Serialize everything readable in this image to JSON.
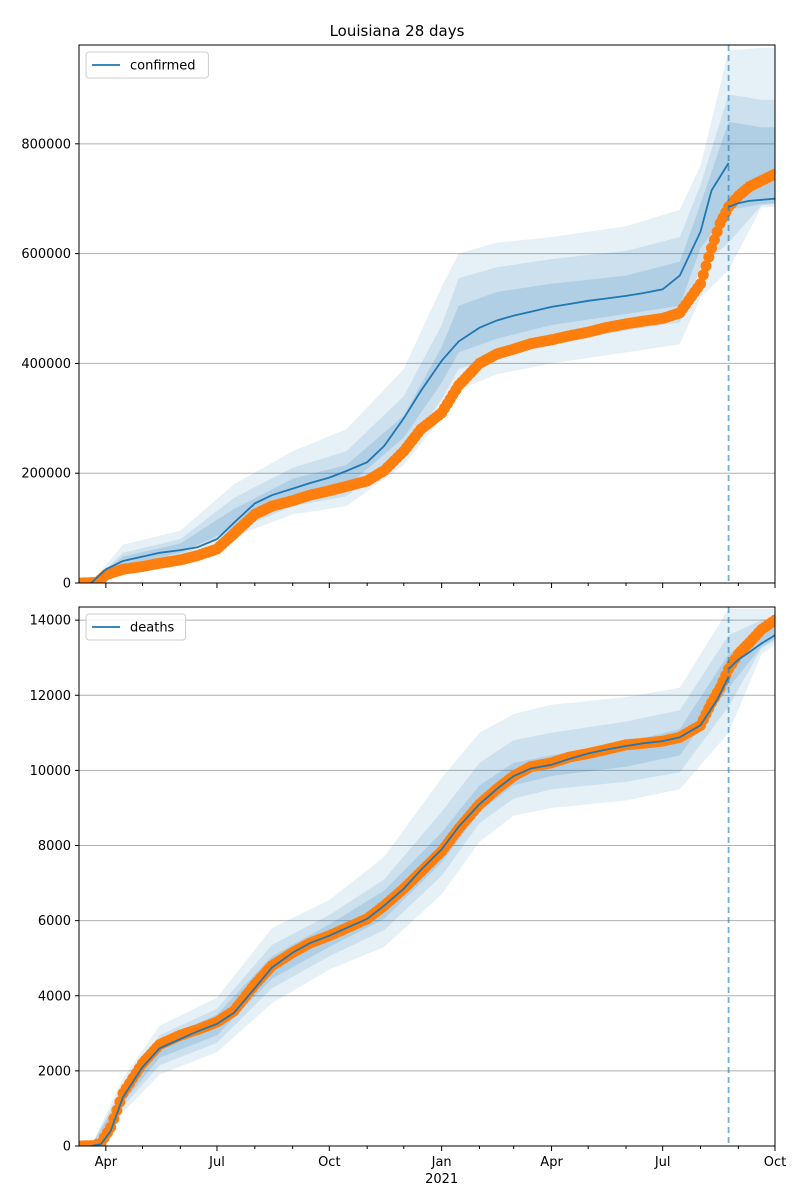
{
  "chart_data": [
    {
      "type": "line",
      "title": "Louisiana 28 days",
      "xlabel": "",
      "ylabel": "",
      "x_range": [
        "2020-03-10",
        "2021-10-01"
      ],
      "ylim": [
        0,
        980000
      ],
      "yticks": [
        0,
        200000,
        400000,
        600000,
        800000
      ],
      "ytick_labels": [
        "0",
        "200000",
        "400000",
        "600000",
        "800000"
      ],
      "grid": "y",
      "legend_position": "upper-left",
      "forecast_start": "2021-08-24",
      "colors": {
        "model": "#1f77b4",
        "observed": "#ff7f0e",
        "band": "#1f77b4"
      },
      "series": [
        {
          "name": "confirmed",
          "kind": "model-median",
          "x": [
            "2020-03-20",
            "2020-04-01",
            "2020-04-15",
            "2020-05-01",
            "2020-05-15",
            "2020-06-01",
            "2020-06-15",
            "2020-07-01",
            "2020-07-15",
            "2020-08-01",
            "2020-08-15",
            "2020-09-01",
            "2020-09-15",
            "2020-10-01",
            "2020-10-15",
            "2020-11-01",
            "2020-11-15",
            "2020-12-01",
            "2020-12-15",
            "2021-01-01",
            "2021-01-15",
            "2021-02-01",
            "2021-02-15",
            "2021-03-01",
            "2021-03-15",
            "2021-04-01",
            "2021-04-15",
            "2021-05-01",
            "2021-05-15",
            "2021-06-01",
            "2021-06-15",
            "2021-07-01",
            "2021-07-15",
            "2021-08-01",
            "2021-08-10",
            "2021-08-24"
          ],
          "y": [
            0,
            25000,
            40000,
            48000,
            55000,
            60000,
            65000,
            80000,
            110000,
            145000,
            160000,
            172000,
            182000,
            192000,
            204000,
            220000,
            250000,
            300000,
            350000,
            405000,
            440000,
            465000,
            478000,
            487000,
            494000,
            503000,
            508000,
            514000,
            518000,
            523000,
            528000,
            535000,
            560000,
            640000,
            715000,
            765000
          ]
        },
        {
          "name": "confirmed",
          "kind": "forecast-median",
          "x": [
            "2021-08-24",
            "2021-09-01",
            "2021-09-10",
            "2021-09-20",
            "2021-10-01"
          ],
          "y": [
            685000,
            692000,
            696000,
            698000,
            700000
          ]
        },
        {
          "name": "confirmed",
          "kind": "observed",
          "x": [
            "2020-03-10",
            "2020-03-25",
            "2020-04-01",
            "2020-04-15",
            "2020-05-01",
            "2020-05-15",
            "2020-06-01",
            "2020-06-15",
            "2020-07-01",
            "2020-07-15",
            "2020-08-01",
            "2020-08-15",
            "2020-09-01",
            "2020-09-15",
            "2020-10-01",
            "2020-10-15",
            "2020-11-01",
            "2020-11-15",
            "2020-12-01",
            "2020-12-15",
            "2021-01-01",
            "2021-01-15",
            "2021-02-01",
            "2021-02-15",
            "2021-03-01",
            "2021-03-15",
            "2021-04-01",
            "2021-04-15",
            "2021-05-01",
            "2021-05-15",
            "2021-06-01",
            "2021-06-15",
            "2021-07-01",
            "2021-07-15",
            "2021-08-01",
            "2021-08-10",
            "2021-08-17",
            "2021-08-24",
            "2021-09-01",
            "2021-09-10",
            "2021-09-20",
            "2021-10-01"
          ],
          "y": [
            0,
            1000,
            15000,
            25000,
            30000,
            36000,
            42000,
            50000,
            62000,
            90000,
            125000,
            140000,
            150000,
            160000,
            168000,
            176000,
            186000,
            205000,
            240000,
            280000,
            310000,
            360000,
            400000,
            417000,
            426000,
            436000,
            443000,
            450000,
            457000,
            465000,
            472000,
            477000,
            482000,
            492000,
            545000,
            610000,
            655000,
            685000,
            705000,
            722000,
            733000,
            745000
          ]
        }
      ],
      "bands": [
        {
          "x": [
            "2020-03-20",
            "2020-04-15",
            "2020-06-01",
            "2020-07-15",
            "2020-09-01",
            "2020-10-15",
            "2020-12-01",
            "2021-01-01",
            "2021-01-15",
            "2021-02-15",
            "2021-04-01",
            "2021-06-01",
            "2021-07-15",
            "2021-08-01",
            "2021-08-24",
            "2021-09-20",
            "2021-10-01"
          ],
          "lower": [
            0,
            18000,
            42000,
            85000,
            125000,
            140000,
            215000,
            300000,
            352000,
            380000,
            400000,
            420000,
            435000,
            520000,
            570000,
            685000,
            685000
          ],
          "upper": [
            0,
            70000,
            95000,
            180000,
            240000,
            280000,
            390000,
            540000,
            600000,
            620000,
            630000,
            650000,
            680000,
            760000,
            970000,
            975000,
            975000
          ]
        },
        {
          "x": [
            "2020-03-20",
            "2020-04-15",
            "2020-06-01",
            "2020-07-15",
            "2020-09-01",
            "2020-10-15",
            "2020-12-01",
            "2021-01-01",
            "2021-01-15",
            "2021-02-15",
            "2021-04-01",
            "2021-06-01",
            "2021-07-15",
            "2021-08-01",
            "2021-08-24",
            "2021-09-20",
            "2021-10-01"
          ],
          "lower": [
            0,
            25000,
            50000,
            95000,
            140000,
            158000,
            240000,
            335000,
            390000,
            410000,
            435000,
            460000,
            475000,
            575000,
            620000,
            688000,
            690000
          ],
          "upper": [
            0,
            55000,
            80000,
            155000,
            210000,
            240000,
            340000,
            470000,
            555000,
            575000,
            590000,
            605000,
            630000,
            725000,
            890000,
            880000,
            880000
          ]
        },
        {
          "x": [
            "2020-03-20",
            "2020-04-15",
            "2020-06-01",
            "2020-07-15",
            "2020-09-01",
            "2020-10-15",
            "2020-12-01",
            "2021-01-01",
            "2021-01-15",
            "2021-02-15",
            "2021-04-01",
            "2021-06-01",
            "2021-07-15",
            "2021-08-01",
            "2021-08-24",
            "2021-09-20",
            "2021-10-01"
          ],
          "lower": [
            0,
            32000,
            55000,
            100000,
            155000,
            175000,
            265000,
            365000,
            420000,
            445000,
            470000,
            490000,
            505000,
            610000,
            680000,
            690000,
            692000
          ],
          "upper": [
            0,
            48000,
            72000,
            135000,
            190000,
            215000,
            305000,
            430000,
            505000,
            530000,
            545000,
            560000,
            585000,
            690000,
            840000,
            830000,
            830000
          ]
        }
      ]
    },
    {
      "type": "line",
      "title": "",
      "xlabel": "",
      "ylabel": "",
      "x_range": [
        "2020-03-10",
        "2021-10-01"
      ],
      "ylim": [
        0,
        14350
      ],
      "yticks": [
        0,
        2000,
        4000,
        6000,
        8000,
        10000,
        12000,
        14000
      ],
      "ytick_labels": [
        "0",
        "2000",
        "4000",
        "6000",
        "8000",
        "10000",
        "12000",
        "14000"
      ],
      "xticks": [
        "2020-04-01",
        "2020-07-01",
        "2020-10-01",
        "2021-01-01",
        "2021-04-01",
        "2021-07-01",
        "2021-10-01"
      ],
      "xtick_labels": [
        "Apr",
        "Jul",
        "Oct",
        "Jan",
        "Apr",
        "Jul",
        "Oct"
      ],
      "year_label": {
        "at": "2021-01-01",
        "text": "2021"
      },
      "grid": "y",
      "legend_position": "upper-left",
      "forecast_start": "2021-08-24",
      "colors": {
        "model": "#1f77b4",
        "observed": "#ff7f0e",
        "band": "#1f77b4"
      },
      "series": [
        {
          "name": "deaths",
          "kind": "model-median",
          "x": [
            "2020-03-20",
            "2020-03-28",
            "2020-04-05",
            "2020-04-15",
            "2020-05-01",
            "2020-05-15",
            "2020-06-01",
            "2020-06-15",
            "2020-07-01",
            "2020-07-15",
            "2020-08-01",
            "2020-08-15",
            "2020-09-01",
            "2020-09-15",
            "2020-10-01",
            "2020-10-15",
            "2020-11-01",
            "2020-11-15",
            "2020-12-01",
            "2020-12-15",
            "2021-01-01",
            "2021-01-15",
            "2021-02-01",
            "2021-02-15",
            "2021-03-01",
            "2021-03-15",
            "2021-04-01",
            "2021-04-15",
            "2021-05-01",
            "2021-05-15",
            "2021-06-01",
            "2021-06-15",
            "2021-07-01",
            "2021-07-15",
            "2021-08-01",
            "2021-08-15",
            "2021-08-24"
          ],
          "y": [
            0,
            50,
            400,
            1300,
            2100,
            2600,
            2850,
            3050,
            3250,
            3550,
            4200,
            4750,
            5150,
            5400,
            5600,
            5800,
            6050,
            6400,
            6850,
            7350,
            7900,
            8500,
            9100,
            9500,
            9850,
            10050,
            10150,
            10300,
            10450,
            10550,
            10650,
            10720,
            10780,
            10880,
            11200,
            11900,
            12500
          ]
        },
        {
          "name": "deaths",
          "kind": "forecast-median",
          "x": [
            "2021-08-24",
            "2021-09-01",
            "2021-09-10",
            "2021-09-20",
            "2021-10-01"
          ],
          "y": [
            12700,
            12950,
            13150,
            13380,
            13600
          ]
        },
        {
          "name": "deaths",
          "kind": "observed",
          "x": [
            "2020-03-10",
            "2020-03-22",
            "2020-03-28",
            "2020-04-05",
            "2020-04-15",
            "2020-05-01",
            "2020-05-15",
            "2020-06-01",
            "2020-06-15",
            "2020-07-01",
            "2020-07-15",
            "2020-08-01",
            "2020-08-15",
            "2020-09-01",
            "2020-09-15",
            "2020-10-01",
            "2020-10-15",
            "2020-11-01",
            "2020-11-15",
            "2020-12-01",
            "2020-12-15",
            "2021-01-01",
            "2021-01-15",
            "2021-02-01",
            "2021-02-15",
            "2021-03-01",
            "2021-03-15",
            "2021-04-01",
            "2021-04-15",
            "2021-05-01",
            "2021-05-15",
            "2021-06-01",
            "2021-06-15",
            "2021-07-01",
            "2021-07-15",
            "2021-08-01",
            "2021-08-10",
            "2021-08-17",
            "2021-08-24",
            "2021-09-01",
            "2021-09-10",
            "2021-09-20",
            "2021-10-01"
          ],
          "y": [
            0,
            10,
            80,
            500,
            1400,
            2200,
            2700,
            2950,
            3100,
            3300,
            3600,
            4300,
            4800,
            5150,
            5400,
            5600,
            5800,
            6050,
            6400,
            6850,
            7300,
            7850,
            8450,
            9100,
            9500,
            9850,
            10100,
            10200,
            10350,
            10450,
            10550,
            10680,
            10720,
            10780,
            10880,
            11200,
            11800,
            12200,
            12700,
            13100,
            13400,
            13750,
            14000
          ]
        }
      ],
      "bands": [
        {
          "x": [
            "2020-03-20",
            "2020-04-15",
            "2020-05-15",
            "2020-07-01",
            "2020-08-15",
            "2020-10-01",
            "2020-11-15",
            "2021-01-01",
            "2021-02-01",
            "2021-03-01",
            "2021-04-01",
            "2021-06-01",
            "2021-07-15",
            "2021-08-24",
            "2021-09-20",
            "2021-10-01"
          ],
          "lower": [
            0,
            900,
            1900,
            2500,
            3800,
            4700,
            5300,
            6700,
            8100,
            8800,
            9000,
            9200,
            9500,
            11000,
            13100,
            13350
          ],
          "upper": [
            0,
            1800,
            3200,
            3950,
            5800,
            6550,
            7700,
            9800,
            11000,
            11500,
            11750,
            11950,
            12200,
            14300,
            14300,
            14300
          ]
        },
        {
          "x": [
            "2020-03-20",
            "2020-04-15",
            "2020-05-15",
            "2020-07-01",
            "2020-08-15",
            "2020-10-01",
            "2020-11-15",
            "2021-01-01",
            "2021-02-01",
            "2021-03-01",
            "2021-04-01",
            "2021-06-01",
            "2021-07-15",
            "2021-08-24",
            "2021-09-20",
            "2021-10-01"
          ],
          "lower": [
            0,
            1050,
            2150,
            2750,
            4200,
            5050,
            5750,
            7200,
            8600,
            9250,
            9500,
            9700,
            9950,
            11700,
            13250,
            13450
          ],
          "upper": [
            0,
            1600,
            2950,
            3650,
            5350,
            6150,
            7100,
            8900,
            10200,
            10800,
            11000,
            11300,
            11600,
            13600,
            14000,
            14100
          ]
        },
        {
          "x": [
            "2020-03-20",
            "2020-04-15",
            "2020-05-15",
            "2020-07-01",
            "2020-08-15",
            "2020-10-01",
            "2020-11-15",
            "2021-01-01",
            "2021-02-01",
            "2021-03-01",
            "2021-04-01",
            "2021-06-01",
            "2021-07-15",
            "2021-08-24",
            "2021-09-20",
            "2021-10-01"
          ],
          "lower": [
            0,
            1150,
            2350,
            2950,
            4450,
            5300,
            6050,
            7550,
            8900,
            9600,
            9850,
            10100,
            10400,
            12200,
            13300,
            13500
          ],
          "upper": [
            0,
            1450,
            2800,
            3500,
            5050,
            5900,
            6800,
            8350,
            9600,
            10200,
            10400,
            10750,
            11100,
            13100,
            13700,
            13800
          ]
        }
      ]
    }
  ]
}
